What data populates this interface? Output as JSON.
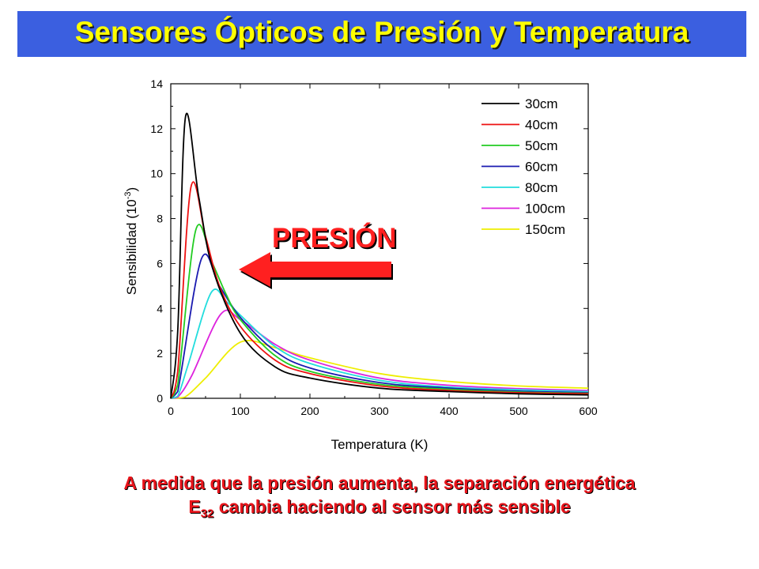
{
  "slide": {
    "title": "Sensores Ópticos de Presión y Temperatura",
    "caption_line1": "A medida que la presión aumenta, la separación energética",
    "caption_line2_prefix": "E",
    "caption_line2_sub": "32",
    "caption_line2_suffix": " cambia haciendo al sensor más sensible",
    "arrow_label": "PRESIÓN",
    "title_bg_color": "#3b5fe0",
    "title_text_color": "#ffff00",
    "caption_color": "#e8141b",
    "arrow_color": "#ff2020"
  },
  "chart_data": {
    "type": "line",
    "xlabel": "Temperatura (K)",
    "ylabel_main": "Sensibilidad (10",
    "ylabel_exp": "-3",
    "ylabel_close": ")",
    "xlim": [
      0,
      600
    ],
    "ylim": [
      0,
      14
    ],
    "xticks": [
      "0",
      "100",
      "200",
      "300",
      "400",
      "500",
      "600"
    ],
    "yticks": [
      "0",
      "2",
      "4",
      "6",
      "8",
      "10",
      "12",
      "14"
    ],
    "grid": false,
    "legend_position": "top-right",
    "series": [
      {
        "name": "30cm",
        "color": "#000000",
        "peak_x": 21,
        "peak_y": 12.5,
        "tail_y_at_600": 0.15,
        "x": [
          0,
          10,
          21,
          40,
          60,
          100,
          150,
          200,
          300,
          400,
          500,
          600
        ],
        "y": [
          0,
          3.0,
          12.5,
          9.0,
          5.8,
          2.9,
          1.4,
          0.9,
          0.45,
          0.3,
          0.2,
          0.15
        ]
      },
      {
        "name": "40cm",
        "color": "#ee1111",
        "peak_x": 29,
        "peak_y": 9.4,
        "tail_y_at_600": 0.2,
        "x": [
          0,
          10,
          29,
          50,
          70,
          100,
          150,
          200,
          300,
          400,
          500,
          600
        ],
        "y": [
          0,
          1.2,
          9.4,
          7.2,
          5.0,
          3.2,
          1.7,
          1.1,
          0.55,
          0.35,
          0.25,
          0.2
        ]
      },
      {
        "name": "50cm",
        "color": "#22cc22",
        "peak_x": 36,
        "peak_y": 7.5,
        "tail_y_at_600": 0.22,
        "x": [
          0,
          10,
          36,
          60,
          80,
          100,
          150,
          200,
          300,
          400,
          500,
          600
        ],
        "y": [
          0,
          0.6,
          7.5,
          6.0,
          4.6,
          3.5,
          1.9,
          1.2,
          0.62,
          0.4,
          0.28,
          0.22
        ]
      },
      {
        "name": "60cm",
        "color": "#1a1ab0",
        "peak_x": 44,
        "peak_y": 6.2,
        "tail_y_at_600": 0.25,
        "x": [
          0,
          10,
          44,
          70,
          100,
          150,
          200,
          300,
          400,
          500,
          600
        ],
        "y": [
          0,
          0.3,
          6.2,
          5.0,
          3.6,
          2.1,
          1.35,
          0.7,
          0.45,
          0.32,
          0.25
        ]
      },
      {
        "name": "80cm",
        "color": "#22dddd",
        "peak_x": 58,
        "peak_y": 4.7,
        "tail_y_at_600": 0.3,
        "x": [
          0,
          10,
          25,
          58,
          80,
          100,
          150,
          200,
          300,
          400,
          500,
          600
        ],
        "y": [
          0,
          0.1,
          1.5,
          4.7,
          4.3,
          3.7,
          2.3,
          1.55,
          0.8,
          0.5,
          0.38,
          0.3
        ]
      },
      {
        "name": "100cm",
        "color": "#dd22dd",
        "peak_x": 72,
        "peak_y": 3.75,
        "tail_y_at_600": 0.35,
        "x": [
          0,
          10,
          30,
          72,
          100,
          150,
          200,
          300,
          400,
          500,
          600
        ],
        "y": [
          0,
          0.05,
          1.0,
          3.75,
          3.5,
          2.4,
          1.7,
          0.9,
          0.58,
          0.43,
          0.35
        ]
      },
      {
        "name": "150cm",
        "color": "#eeee00",
        "peak_x": 100,
        "peak_y": 2.5,
        "tail_y_at_600": 0.45,
        "x": [
          0,
          20,
          50,
          100,
          150,
          200,
          300,
          400,
          500,
          600
        ],
        "y": [
          0,
          0.05,
          0.9,
          2.5,
          2.25,
          1.8,
          1.1,
          0.75,
          0.55,
          0.45
        ]
      }
    ]
  }
}
